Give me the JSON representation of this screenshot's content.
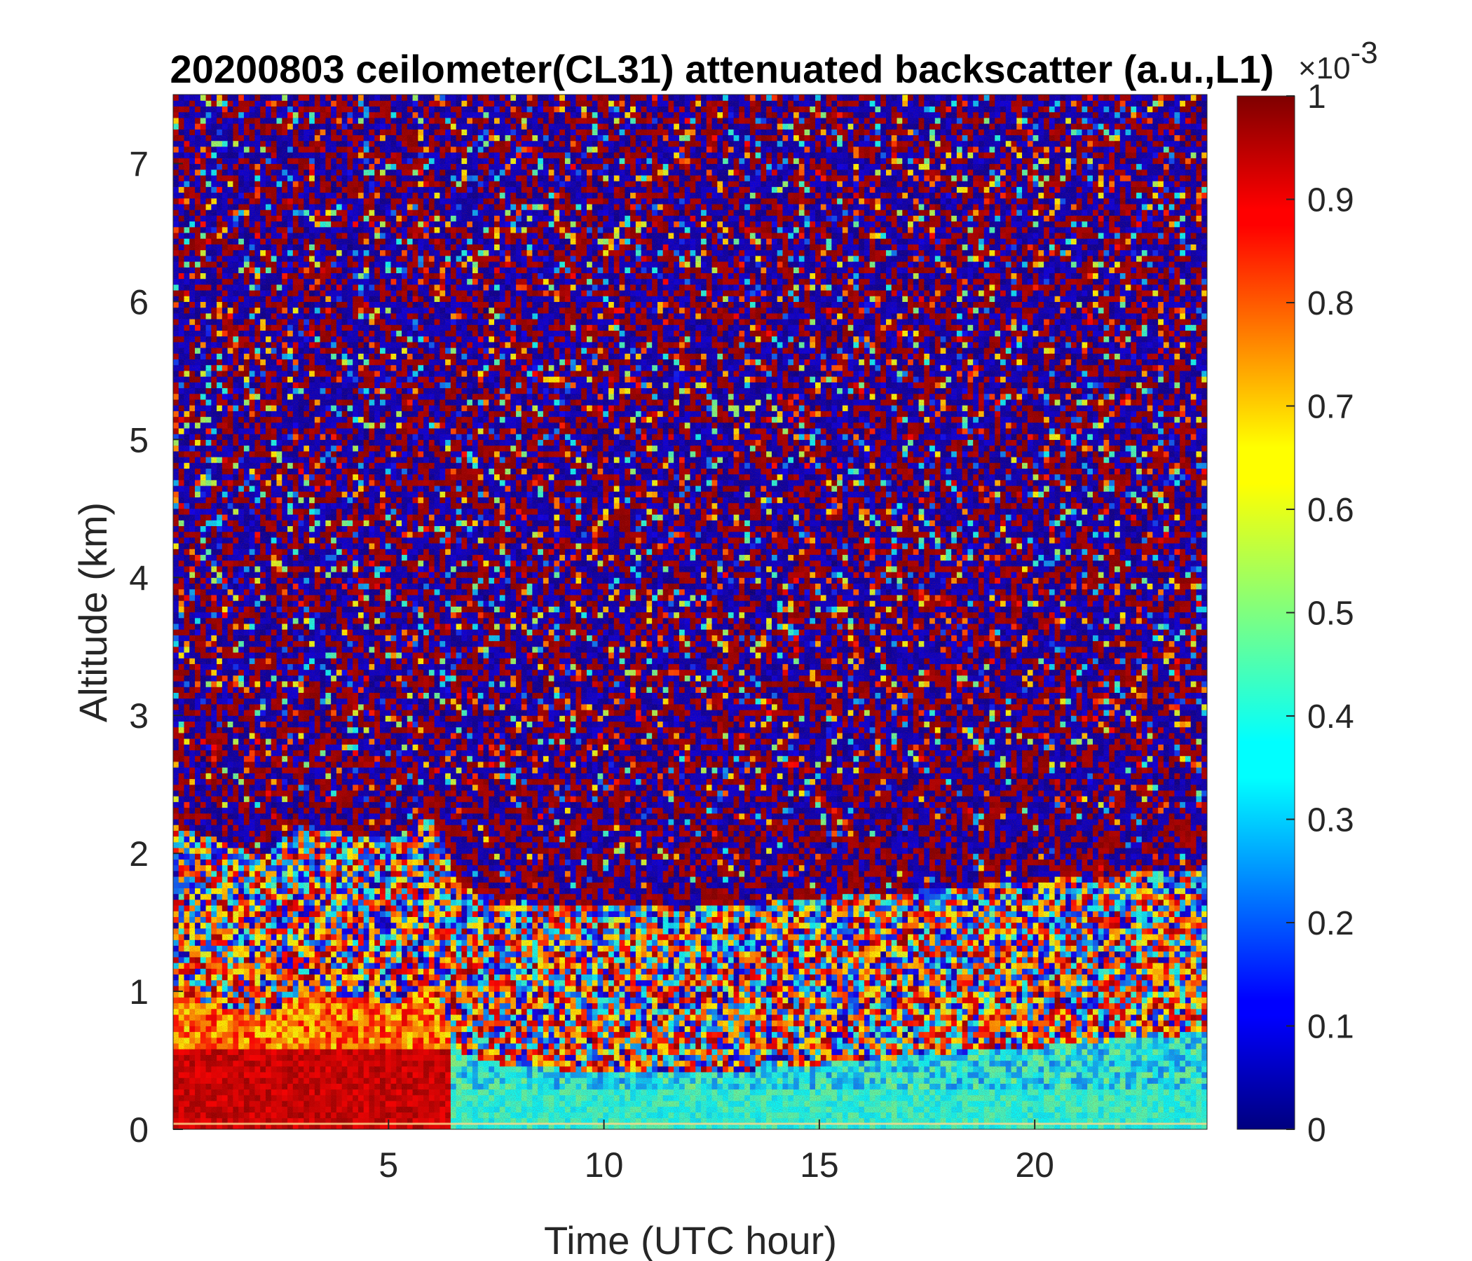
{
  "chart_data": {
    "type": "heatmap",
    "title": "20200803 ceilometer(CL31) attenuated backscatter (a.u.,L1)",
    "xlabel": "Time (UTC hour)",
    "ylabel": "Altitude (km)",
    "xlim": [
      0,
      24
    ],
    "ylim": [
      0,
      7.5
    ],
    "xticks": [
      5,
      10,
      15,
      20
    ],
    "yticks": [
      0,
      1,
      2,
      3,
      4,
      5,
      6,
      7
    ],
    "colorbar": {
      "colormap": "jet",
      "range": [
        0,
        1
      ],
      "ticks": [
        "0",
        "0.1",
        "0.2",
        "0.3",
        "0.4",
        "0.5",
        "0.6",
        "0.7",
        "0.8",
        "0.9",
        "1"
      ],
      "exponent_base": "×10",
      "exponent_power": "-3"
    },
    "features": {
      "boundary_layer_height_km": [
        {
          "x": 0,
          "y": 1.0
        },
        {
          "x": 2,
          "y": 0.8
        },
        {
          "x": 3,
          "y": 1.0
        },
        {
          "x": 5,
          "y": 0.9
        },
        {
          "x": 6,
          "y": 1.05
        },
        {
          "x": 6.7,
          "y": 0.55
        },
        {
          "x": 8,
          "y": 0.45
        },
        {
          "x": 12,
          "y": 0.4
        },
        {
          "x": 16,
          "y": 0.5
        },
        {
          "x": 20,
          "y": 0.6
        },
        {
          "x": 24,
          "y": 0.7
        }
      ],
      "high_backscatter_region": {
        "x": [
          0,
          6.5
        ],
        "y": [
          0,
          0.6
        ]
      },
      "surface_layer_top_km": 0.3
    }
  }
}
